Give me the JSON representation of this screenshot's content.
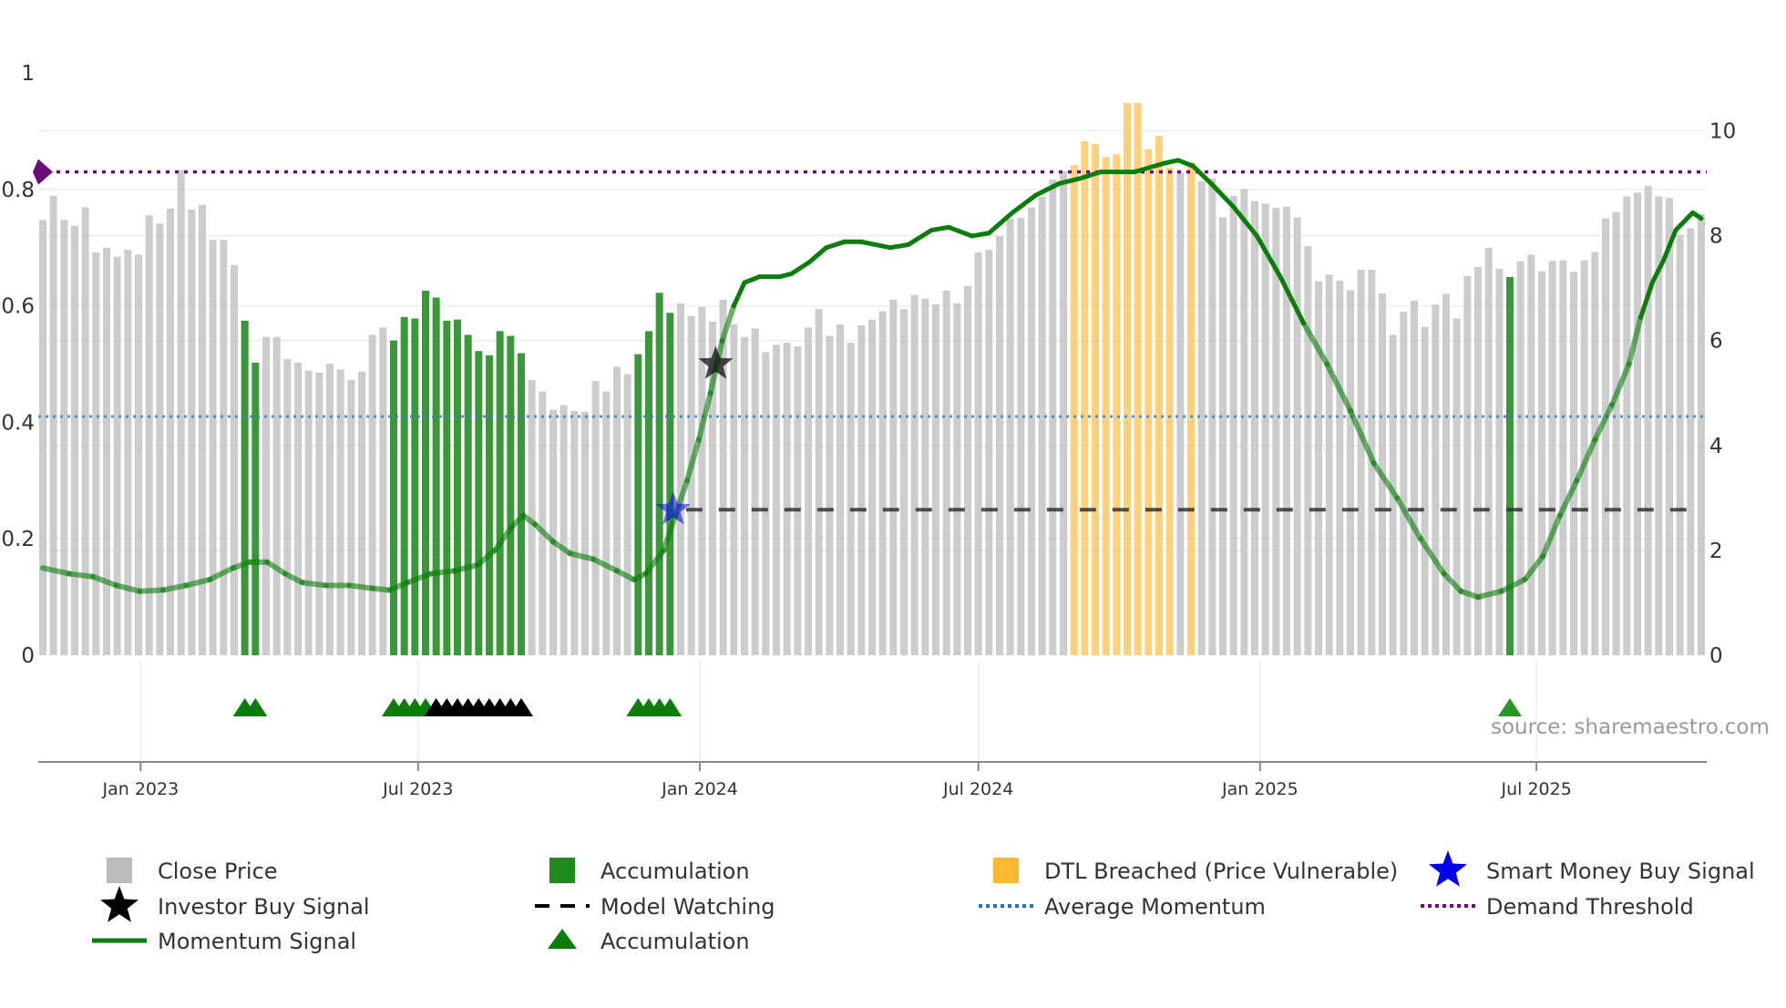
{
  "chart_data": {
    "type": "bar",
    "title": "",
    "source": "source: sharemaestro.com",
    "left_axis": {
      "ticks": [
        "0",
        "0.2",
        "0.4",
        "0.6",
        "0.8",
        "1"
      ],
      "range": [
        0,
        1
      ]
    },
    "right_axis": {
      "ticks": [
        "0",
        "2",
        "4",
        "6",
        "8",
        "10"
      ],
      "range": [
        0,
        10
      ]
    },
    "x_ticks": [
      "Jan 2023",
      "Jul 2023",
      "Jan 2024",
      "Jul 2024",
      "Jan 2025",
      "Jul 2025"
    ],
    "close_price": [
      8.3,
      8.76,
      8.3,
      8.19,
      8.54,
      7.68,
      7.77,
      7.6,
      7.73,
      7.64,
      8.39,
      8.23,
      8.52,
      9.25,
      8.5,
      8.59,
      7.92,
      7.92,
      7.44,
      6.38,
      5.58,
      6.07,
      6.07,
      5.65,
      5.58,
      5.43,
      5.39,
      5.56,
      5.45,
      5.25,
      5.41,
      6.11,
      6.25,
      6.0,
      6.45,
      6.42,
      6.95,
      6.82,
      6.38,
      6.4,
      6.11,
      5.8,
      5.72,
      6.18,
      6.09,
      5.76,
      5.25,
      5.03,
      4.68,
      4.77,
      4.66,
      4.64,
      5.23,
      5.03,
      5.5,
      5.36,
      5.74,
      6.18,
      6.91,
      6.53,
      6.71,
      6.47,
      6.64,
      6.36,
      6.78,
      6.31,
      6.07,
      6.23,
      5.78,
      5.92,
      5.96,
      5.89,
      6.25,
      6.6,
      6.09,
      6.31,
      5.96,
      6.29,
      6.4,
      6.56,
      6.78,
      6.6,
      6.87,
      6.8,
      6.69,
      6.95,
      6.71,
      7.04,
      7.68,
      7.73,
      7.99,
      8.32,
      8.34,
      8.54,
      8.74,
      9.07,
      9.23,
      9.35,
      9.8,
      9.75,
      9.5,
      9.55,
      10.53,
      10.53,
      9.65,
      9.9,
      9.3,
      9.2,
      9.4,
      9.04,
      9.09,
      8.35,
      8.76,
      8.89,
      8.66,
      8.61,
      8.53,
      8.55,
      8.35,
      7.8,
      7.13,
      7.26,
      7.14,
      6.96,
      7.35,
      7.35,
      6.9,
      6.11,
      6.55,
      6.76,
      6.26,
      6.69,
      6.89,
      6.42,
      7.23,
      7.4,
      7.77,
      7.37,
      7.21,
      7.51,
      7.64,
      7.32,
      7.52,
      7.53,
      7.31,
      7.53,
      7.69,
      8.33,
      8.45,
      8.75,
      8.82,
      8.95,
      8.75,
      8.72,
      8.02,
      8.14,
      8.41
    ],
    "accumulation_bars": [
      19,
      20,
      33,
      34,
      35,
      36,
      37,
      38,
      39,
      40,
      41,
      42,
      43,
      44,
      45,
      56,
      57,
      58,
      59,
      138
    ],
    "dtl_breached_bars": [
      97,
      98,
      99,
      100,
      101,
      102,
      103,
      104,
      105,
      106,
      108
    ],
    "momentum_signal": [
      [
        0,
        0.15
      ],
      [
        2.5,
        0.14
      ],
      [
        4.7,
        0.135
      ],
      [
        6.9,
        0.12
      ],
      [
        9.1,
        0.11
      ],
      [
        11.3,
        0.112
      ],
      [
        13.5,
        0.12
      ],
      [
        15.7,
        0.13
      ],
      [
        17.9,
        0.15
      ],
      [
        19.5,
        0.16
      ],
      [
        21.1,
        0.16
      ],
      [
        22.8,
        0.14
      ],
      [
        24.4,
        0.125
      ],
      [
        26.6,
        0.12
      ],
      [
        28.8,
        0.12
      ],
      [
        31,
        0.115
      ],
      [
        32.6,
        0.112
      ],
      [
        34.3,
        0.125
      ],
      [
        36.5,
        0.14
      ],
      [
        38.7,
        0.145
      ],
      [
        40.9,
        0.155
      ],
      [
        42.5,
        0.18
      ],
      [
        44.1,
        0.22
      ],
      [
        45.2,
        0.24
      ],
      [
        46.3,
        0.225
      ],
      [
        48,
        0.195
      ],
      [
        49.6,
        0.175
      ],
      [
        51.8,
        0.165
      ],
      [
        54,
        0.145
      ],
      [
        55.6,
        0.13
      ],
      [
        56.7,
        0.14
      ],
      [
        58.4,
        0.18
      ],
      [
        59.5,
        0.24
      ],
      [
        60.6,
        0.3
      ],
      [
        61.7,
        0.37
      ],
      [
        62.8,
        0.45
      ],
      [
        63.9,
        0.54
      ],
      [
        65,
        0.6
      ],
      [
        66,
        0.64
      ],
      [
        67.4,
        0.65
      ],
      [
        69.3,
        0.65
      ],
      [
        70.4,
        0.655
      ],
      [
        72.1,
        0.675
      ],
      [
        73.7,
        0.7
      ],
      [
        75.4,
        0.71
      ],
      [
        77,
        0.71
      ],
      [
        79.7,
        0.7
      ],
      [
        81.4,
        0.705
      ],
      [
        83.6,
        0.73
      ],
      [
        85.2,
        0.735
      ],
      [
        87.4,
        0.72
      ],
      [
        89,
        0.725
      ],
      [
        91.2,
        0.76
      ],
      [
        93.4,
        0.79
      ],
      [
        95.6,
        0.81
      ],
      [
        97.8,
        0.82
      ],
      [
        99.5,
        0.83
      ],
      [
        102.7,
        0.83
      ],
      [
        105.5,
        0.845
      ],
      [
        106.8,
        0.85
      ],
      [
        108.2,
        0.84
      ],
      [
        109.9,
        0.81
      ],
      [
        112,
        0.77
      ],
      [
        114.2,
        0.72
      ],
      [
        116.4,
        0.65
      ],
      [
        118.6,
        0.57
      ],
      [
        120.8,
        0.5
      ],
      [
        123,
        0.42
      ],
      [
        125.2,
        0.33
      ],
      [
        127.4,
        0.27
      ],
      [
        129.6,
        0.2
      ],
      [
        131.8,
        0.14
      ],
      [
        133.4,
        0.11
      ],
      [
        135,
        0.1
      ],
      [
        137.2,
        0.11
      ],
      [
        139.4,
        0.13
      ],
      [
        141.1,
        0.17
      ],
      [
        142.7,
        0.24
      ],
      [
        144.3,
        0.3
      ],
      [
        146,
        0.37
      ],
      [
        147.6,
        0.43
      ],
      [
        149.2,
        0.5
      ],
      [
        150.3,
        0.58
      ],
      [
        151.4,
        0.64
      ],
      [
        152.5,
        0.68
      ],
      [
        153.6,
        0.73
      ],
      [
        155.2,
        0.76
      ],
      [
        156,
        0.75
      ]
    ],
    "average_momentum": 0.41,
    "demand_threshold": 0.83,
    "model_watching": {
      "value": 0.25,
      "from_bar": 59.3,
      "to_bar": 155
    },
    "smart_money_buy_signal": {
      "bar": 59.3,
      "value": 0.25
    },
    "investor_buy_signal": {
      "bar": 63.3,
      "value": 0.5
    },
    "accumulation_markers": [
      19,
      20,
      33,
      34,
      35,
      36,
      56,
      57,
      58,
      59,
      138
    ],
    "model_watching_markers": [
      37,
      38,
      39,
      40,
      41,
      42,
      43,
      44,
      45
    ],
    "colors": {
      "price": "#c6c6c6",
      "accumulation": "#1f8a1f",
      "dtl": "#ffc966",
      "momentum": "#0a7d0a",
      "average": "#4a7fa8",
      "demand": "#6e0a78",
      "smart_money": "#0000ee",
      "investor": "#000000"
    },
    "legend": [
      {
        "label": "Close Price",
        "icon": "gray-square"
      },
      {
        "label": "Accumulation",
        "icon": "green-square"
      },
      {
        "label": "DTL Breached (Price Vulnerable)",
        "icon": "orange-square"
      },
      {
        "label": "Smart Money Buy Signal",
        "icon": "blue-star"
      },
      {
        "label": "Investor Buy Signal",
        "icon": "black-star"
      },
      {
        "label": "Model Watching",
        "icon": "black-dash"
      },
      {
        "label": "Average Momentum",
        "icon": "blue-dots"
      },
      {
        "label": "Demand Threshold",
        "icon": "purple-dots"
      },
      {
        "label": "Momentum Signal",
        "icon": "green-line"
      },
      {
        "label": "Accumulation",
        "icon": "green-triangle"
      }
    ]
  }
}
